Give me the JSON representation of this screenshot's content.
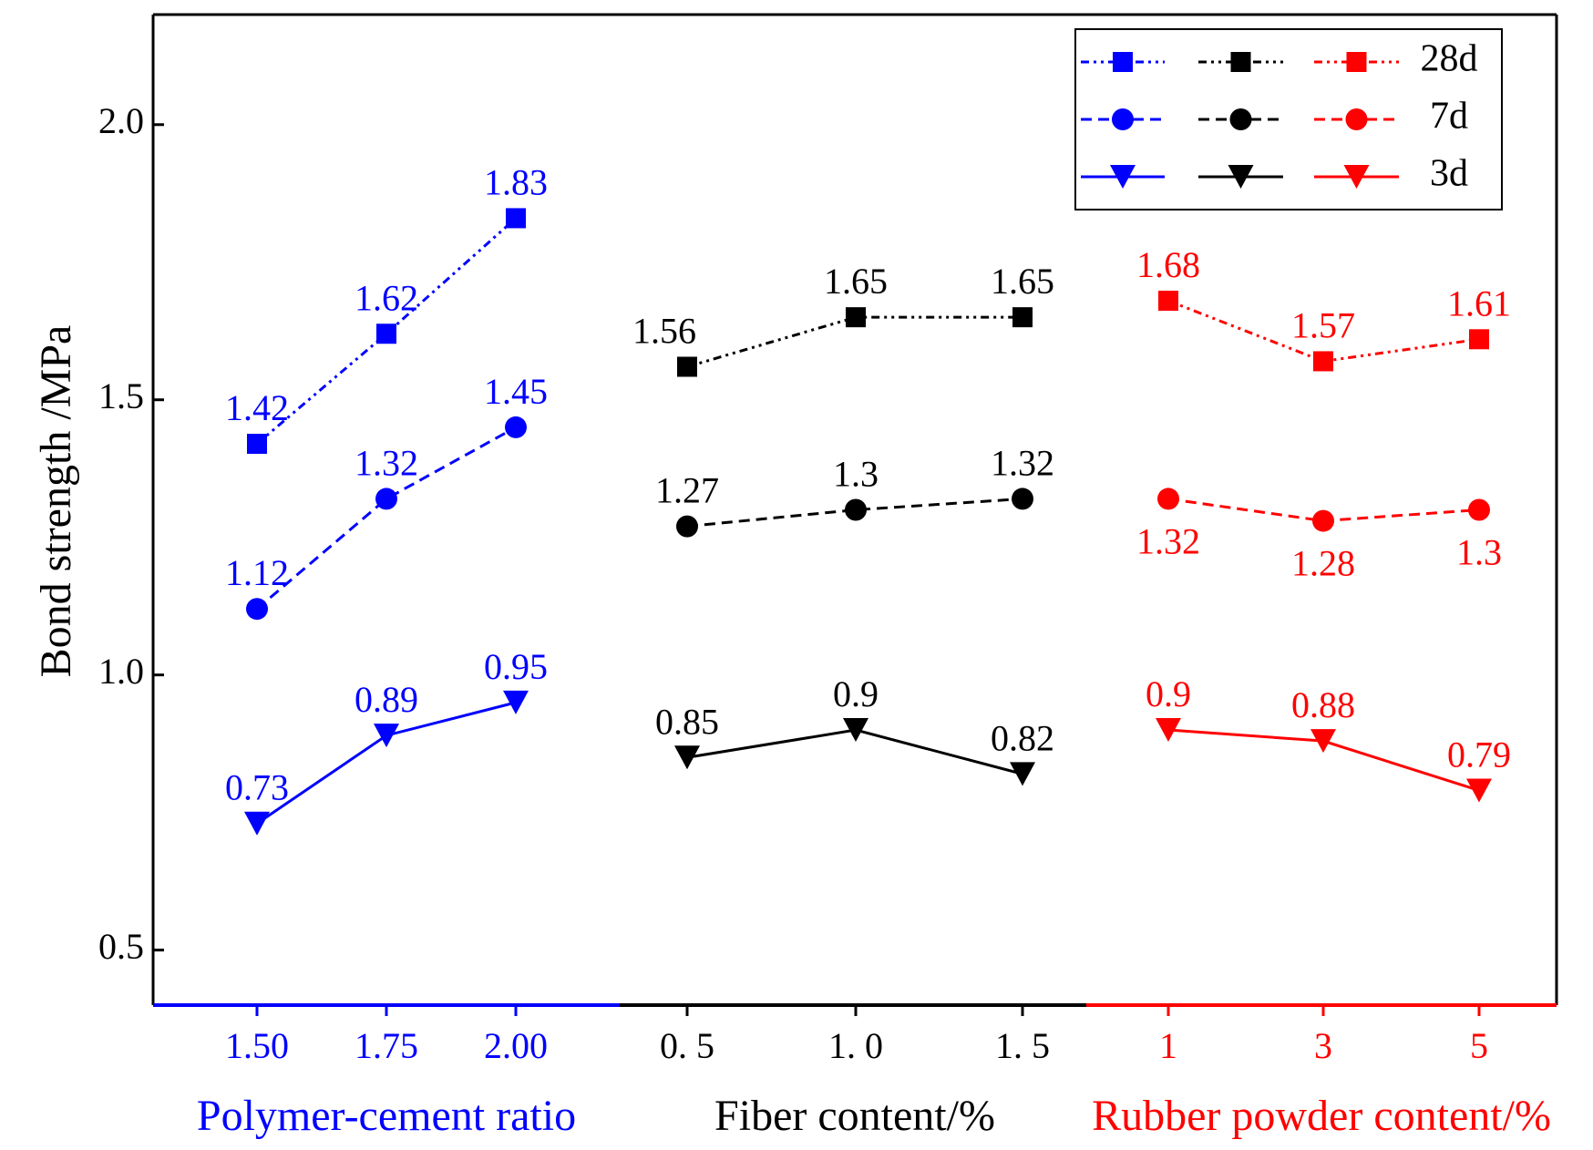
{
  "chart_data": {
    "type": "line",
    "ylabel": "Bond strength /MPa",
    "ylim": [
      0.4,
      2.2
    ],
    "yticks": [
      "0.5",
      "1.0",
      "1.5",
      "2.0"
    ],
    "ytick_values": [
      0.5,
      1.0,
      1.5,
      2.0
    ],
    "grid": false,
    "legend_position": "top-right",
    "legend": [
      {
        "label": "28d",
        "marker": "square",
        "line": "dash-dot-dot"
      },
      {
        "label": "7d",
        "marker": "circle",
        "line": "dashed"
      },
      {
        "label": "3d",
        "marker": "triangle-down",
        "line": "solid"
      }
    ],
    "groups": [
      {
        "name": "polymer",
        "xlabel": "Polymer-cement ratio",
        "color": "#0000ff",
        "categories": [
          "1.50",
          "1.75",
          "2.00"
        ],
        "series": [
          {
            "name": "28d",
            "values": [
              1.42,
              1.62,
              1.83
            ],
            "labels": [
              "1.42",
              "1.62",
              "1.83"
            ],
            "label_pos": [
              "above",
              "above",
              "above"
            ]
          },
          {
            "name": "7d",
            "values": [
              1.12,
              1.32,
              1.45
            ],
            "labels": [
              "1.12",
              "1.32",
              "1.45"
            ],
            "label_pos": [
              "above",
              "above",
              "above"
            ]
          },
          {
            "name": "3d",
            "values": [
              0.73,
              0.89,
              0.95
            ],
            "labels": [
              "0.73",
              "0.89",
              "0.95"
            ],
            "label_pos": [
              "above",
              "above",
              "above"
            ]
          }
        ]
      },
      {
        "name": "fiber",
        "xlabel": "Fiber content/%",
        "color": "#000000",
        "categories": [
          "0. 5",
          "1. 0",
          "1. 5"
        ],
        "series": [
          {
            "name": "28d",
            "values": [
              1.56,
              1.65,
              1.65
            ],
            "labels": [
              "1.56",
              "1.65",
              "1.65"
            ],
            "label_pos": [
              "above-left",
              "above",
              "above"
            ]
          },
          {
            "name": "7d",
            "values": [
              1.27,
              1.3,
              1.32
            ],
            "labels": [
              "1.27",
              "1.3",
              "1.32"
            ],
            "label_pos": [
              "above",
              "above",
              "above"
            ]
          },
          {
            "name": "3d",
            "values": [
              0.85,
              0.9,
              0.82
            ],
            "labels": [
              "0.85",
              "0.9",
              "0.82"
            ],
            "label_pos": [
              "above",
              "above",
              "above"
            ]
          }
        ]
      },
      {
        "name": "rubber",
        "xlabel": "Rubber powder content/%",
        "color": "#ff0000",
        "categories": [
          "1",
          "3",
          "5"
        ],
        "series": [
          {
            "name": "28d",
            "values": [
              1.68,
              1.57,
              1.61
            ],
            "labels": [
              "1.68",
              "1.57",
              "1.61"
            ],
            "label_pos": [
              "above",
              "above",
              "above"
            ]
          },
          {
            "name": "7d",
            "values": [
              1.32,
              1.28,
              1.3
            ],
            "labels": [
              "1.32",
              "1.28",
              "1.3"
            ],
            "label_pos": [
              "below",
              "below",
              "below"
            ]
          },
          {
            "name": "3d",
            "values": [
              0.9,
              0.88,
              0.79
            ],
            "labels": [
              "0.9",
              "0.88",
              "0.79"
            ],
            "label_pos": [
              "above",
              "above",
              "above"
            ]
          }
        ]
      }
    ]
  }
}
